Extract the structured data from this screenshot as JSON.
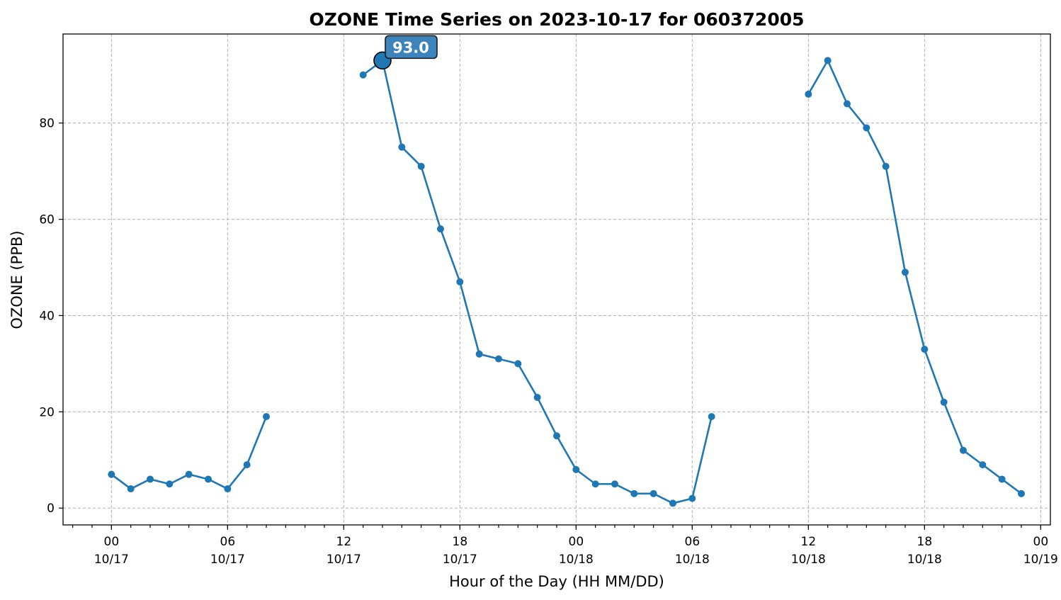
{
  "chart_data": {
    "type": "line",
    "title": "OZONE Time Series on 2023-10-17 for 060372005",
    "xlabel": "Hour of the Day (HH MM/DD)",
    "ylabel": "OZONE (PPB)",
    "ylim": [
      -3.5,
      98.5
    ],
    "xlim": [
      "2023-10-16 21:30",
      "2023-10-19 00:30"
    ],
    "grid": true,
    "color": "#1f77b4",
    "annotation": {
      "label": "93.0",
      "x": "2023-10-17 14:00",
      "y": 93.0
    },
    "y_ticks": [
      0,
      20,
      40,
      60,
      80
    ],
    "x_ticks": [
      {
        "time": "2023-10-17 00:00",
        "hh": "00",
        "date": "10/17"
      },
      {
        "time": "2023-10-17 06:00",
        "hh": "06",
        "date": "10/17"
      },
      {
        "time": "2023-10-17 12:00",
        "hh": "12",
        "date": "10/17"
      },
      {
        "time": "2023-10-17 18:00",
        "hh": "18",
        "date": "10/17"
      },
      {
        "time": "2023-10-18 00:00",
        "hh": "00",
        "date": "10/18"
      },
      {
        "time": "2023-10-18 06:00",
        "hh": "06",
        "date": "10/18"
      },
      {
        "time": "2023-10-18 12:00",
        "hh": "12",
        "date": "10/18"
      },
      {
        "time": "2023-10-18 18:00",
        "hh": "18",
        "date": "10/18"
      },
      {
        "time": "2023-10-19 00:00",
        "hh": "00",
        "date": "10/19"
      }
    ],
    "series": [
      {
        "points": [
          {
            "x": "2023-10-17 00:00",
            "y": 7
          },
          {
            "x": "2023-10-17 01:00",
            "y": 4
          },
          {
            "x": "2023-10-17 02:00",
            "y": 6
          },
          {
            "x": "2023-10-17 03:00",
            "y": 5
          },
          {
            "x": "2023-10-17 04:00",
            "y": 7
          },
          {
            "x": "2023-10-17 05:00",
            "y": 6
          },
          {
            "x": "2023-10-17 06:00",
            "y": 4
          },
          {
            "x": "2023-10-17 07:00",
            "y": 9
          },
          {
            "x": "2023-10-17 08:00",
            "y": 19
          },
          {
            "x": "2023-10-17 09:00",
            "y": null
          },
          {
            "x": "2023-10-17 10:00",
            "y": null
          },
          {
            "x": "2023-10-17 11:00",
            "y": null
          },
          {
            "x": "2023-10-17 12:00",
            "y": null
          },
          {
            "x": "2023-10-17 13:00",
            "y": 90
          },
          {
            "x": "2023-10-17 14:00",
            "y": 93
          },
          {
            "x": "2023-10-17 15:00",
            "y": 75
          },
          {
            "x": "2023-10-17 16:00",
            "y": 71
          },
          {
            "x": "2023-10-17 17:00",
            "y": 58
          },
          {
            "x": "2023-10-17 18:00",
            "y": 47
          },
          {
            "x": "2023-10-17 19:00",
            "y": 32
          },
          {
            "x": "2023-10-17 20:00",
            "y": 31
          },
          {
            "x": "2023-10-17 21:00",
            "y": 30
          },
          {
            "x": "2023-10-17 22:00",
            "y": 23
          },
          {
            "x": "2023-10-17 23:00",
            "y": 15
          },
          {
            "x": "2023-10-18 00:00",
            "y": 8
          },
          {
            "x": "2023-10-18 01:00",
            "y": 5
          },
          {
            "x": "2023-10-18 02:00",
            "y": 5
          },
          {
            "x": "2023-10-18 03:00",
            "y": 3
          },
          {
            "x": "2023-10-18 04:00",
            "y": 3
          },
          {
            "x": "2023-10-18 05:00",
            "y": 1
          },
          {
            "x": "2023-10-18 06:00",
            "y": 2
          },
          {
            "x": "2023-10-18 07:00",
            "y": 19
          },
          {
            "x": "2023-10-18 08:00",
            "y": null
          },
          {
            "x": "2023-10-18 09:00",
            "y": null
          },
          {
            "x": "2023-10-18 10:00",
            "y": null
          },
          {
            "x": "2023-10-18 11:00",
            "y": null
          },
          {
            "x": "2023-10-18 12:00",
            "y": 86
          },
          {
            "x": "2023-10-18 13:00",
            "y": 93
          },
          {
            "x": "2023-10-18 14:00",
            "y": 84
          },
          {
            "x": "2023-10-18 15:00",
            "y": 79
          },
          {
            "x": "2023-10-18 16:00",
            "y": 71
          },
          {
            "x": "2023-10-18 17:00",
            "y": 49
          },
          {
            "x": "2023-10-18 18:00",
            "y": 33
          },
          {
            "x": "2023-10-18 19:00",
            "y": 22
          },
          {
            "x": "2023-10-18 20:00",
            "y": 12
          },
          {
            "x": "2023-10-18 21:00",
            "y": 9
          },
          {
            "x": "2023-10-18 22:00",
            "y": 6
          },
          {
            "x": "2023-10-18 23:00",
            "y": 3
          }
        ]
      }
    ]
  }
}
